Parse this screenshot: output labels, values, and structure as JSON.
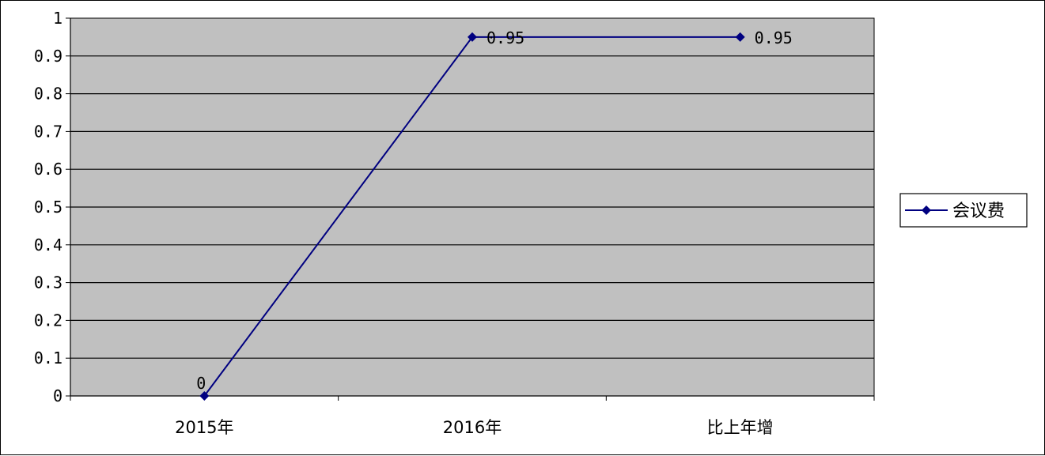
{
  "chart_data": {
    "type": "line",
    "categories": [
      "2015年",
      "2016年",
      "比上年增"
    ],
    "series": [
      {
        "name": "会议费",
        "values": [
          0,
          0.95,
          0.95
        ],
        "data_labels": [
          "0",
          "0.95",
          "0.95"
        ]
      }
    ],
    "y_ticks": [
      "0",
      "0.1",
      "0.2",
      "0.3",
      "0.4",
      "0.5",
      "0.6",
      "0.7",
      "0.8",
      "0.9",
      "1"
    ],
    "ylim": [
      0,
      1
    ],
    "grid": true,
    "legend_position": "right",
    "colors": {
      "plot_background": "#C0C0C0",
      "series_line": "#000080",
      "gridline": "#000000"
    }
  }
}
